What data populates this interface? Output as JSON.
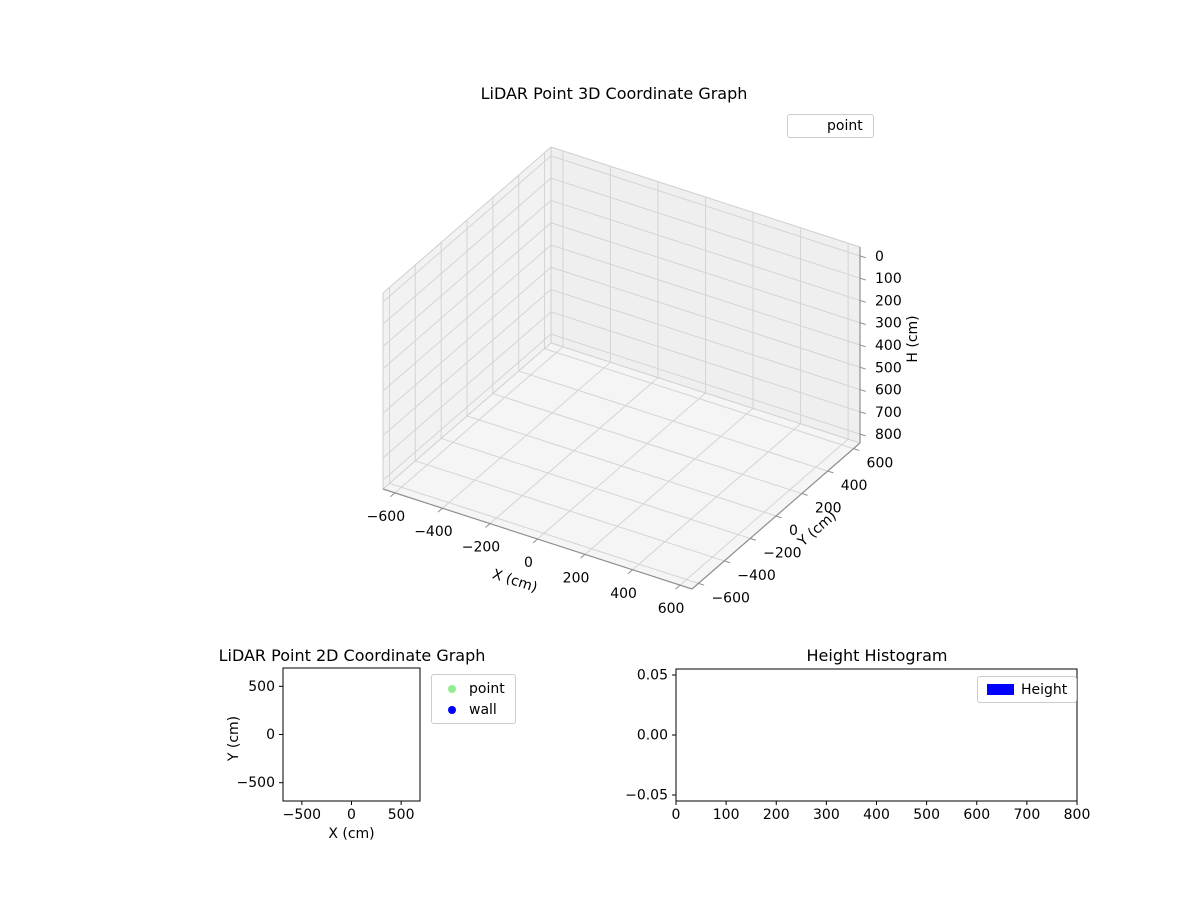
{
  "figure": {
    "background": "#ffffff"
  },
  "chart_data": [
    {
      "id": "lidar-3d",
      "type": "scatter3d",
      "title": "LiDAR Point 3D Coordinate Graph",
      "xlabel": "X (cm)",
      "ylabel": "Y (cm)",
      "zlabel": "H (cm)",
      "xticks": [
        -600,
        -400,
        -200,
        0,
        200,
        400,
        600
      ],
      "yticks": [
        -600,
        -400,
        -200,
        0,
        200,
        400,
        600
      ],
      "zticks": [
        0,
        100,
        200,
        300,
        400,
        500,
        600,
        700,
        800
      ],
      "xlim": [
        -650,
        650
      ],
      "ylim": [
        -650,
        650
      ],
      "zlim": [
        -40,
        840
      ],
      "z_inverted": true,
      "grid": true,
      "legend": {
        "position": "upper-right",
        "entries": [
          {
            "label": "point",
            "marker": "none",
            "color": "#ffffff"
          }
        ]
      },
      "series": [
        {
          "name": "point",
          "points": []
        }
      ]
    },
    {
      "id": "lidar-2d",
      "type": "scatter",
      "title": "LiDAR Point 2D Coordinate Graph",
      "xlabel": "X (cm)",
      "ylabel": "Y (cm)",
      "xticks": [
        -500,
        0,
        500
      ],
      "yticks": [
        500,
        0,
        -500
      ],
      "xlim": [
        -690,
        690
      ],
      "ylim": [
        -690,
        690
      ],
      "grid": false,
      "legend": {
        "position": "outside-right",
        "entries": [
          {
            "label": "point",
            "marker": "circle",
            "color": "#90ee90"
          },
          {
            "label": "wall",
            "marker": "circle",
            "color": "#0000ff"
          }
        ]
      },
      "series": [
        {
          "name": "point",
          "points": []
        },
        {
          "name": "wall",
          "points": []
        }
      ]
    },
    {
      "id": "height-histogram",
      "type": "bar",
      "title": "Height Histogram",
      "xlabel": "",
      "ylabel": "",
      "xticks": [
        0,
        100,
        200,
        300,
        400,
        500,
        600,
        700,
        800
      ],
      "yticks": [
        0.05,
        0,
        -0.05
      ],
      "ytick_labels": [
        "0.05",
        "0.00",
        "−0.05"
      ],
      "xlim": [
        0,
        800
      ],
      "ylim": [
        -0.055,
        0.055
      ],
      "grid": false,
      "legend": {
        "position": "upper-right",
        "entries": [
          {
            "label": "Height",
            "marker": "rect",
            "color": "#0000ff"
          }
        ]
      },
      "values": []
    }
  ]
}
